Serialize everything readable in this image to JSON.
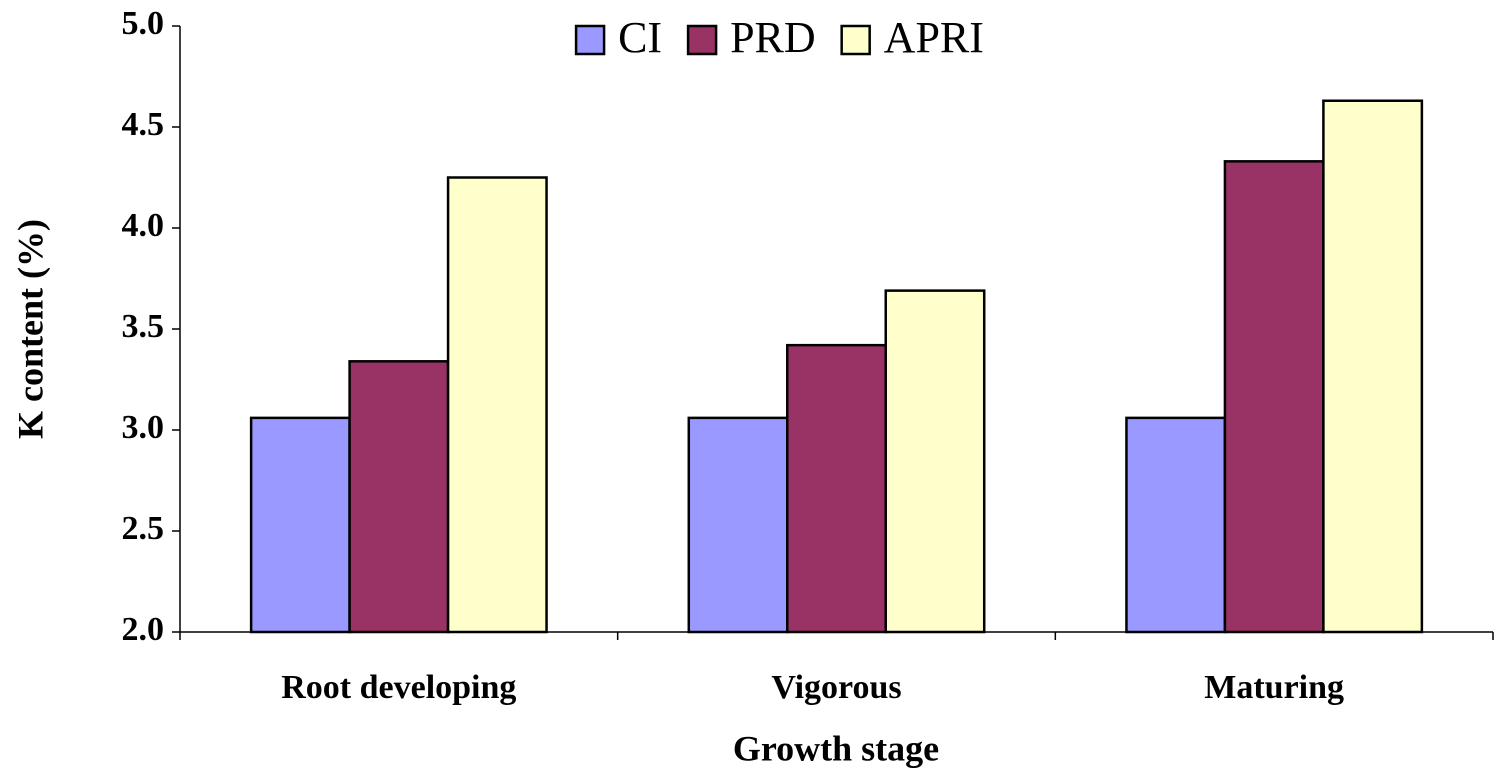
{
  "chart_data": {
    "type": "bar",
    "x_label": "Growth stage",
    "y_label": "K content (%)",
    "categories": [
      "Root developing",
      "Vigorous",
      "Maturing"
    ],
    "series": [
      {
        "name": "CI",
        "color": "#9999ff",
        "values": [
          3.06,
          3.06,
          3.06
        ]
      },
      {
        "name": "PRD",
        "color": "#993366",
        "values": [
          3.34,
          3.42,
          4.33
        ]
      },
      {
        "name": "APRI",
        "color": "#ffffcc",
        "values": [
          4.25,
          3.69,
          4.63
        ]
      }
    ],
    "ylim": [
      2,
      5
    ],
    "yticks": [
      {
        "value": 2,
        "label": "2.0"
      },
      2.5,
      {
        "value": 3,
        "label": "3.0"
      },
      3.5,
      {
        "value": 4,
        "label": "4.0"
      },
      4.5,
      {
        "value": 5,
        "label": "5.0"
      }
    ],
    "grid": false,
    "legend": "top"
  }
}
